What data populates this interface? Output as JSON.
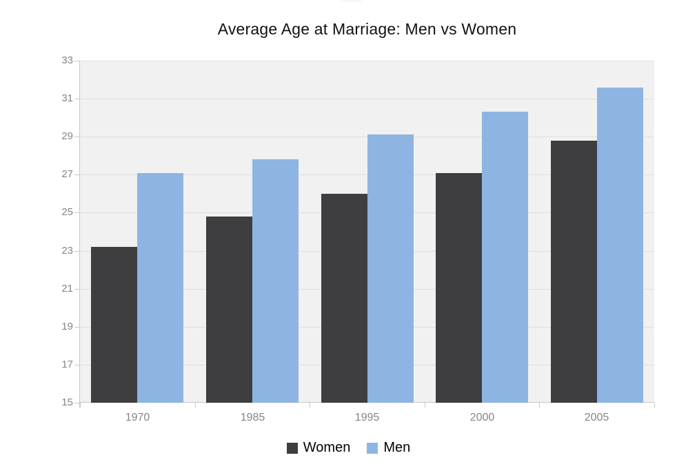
{
  "chart_data": {
    "type": "bar",
    "title": "Average Age at Marriage: Men vs Women",
    "categories": [
      "1970",
      "1985",
      "1995",
      "2000",
      "2005"
    ],
    "series": [
      {
        "name": "Women",
        "color": "#3e3e40",
        "values": [
          23.2,
          24.8,
          26.0,
          27.1,
          28.8
        ]
      },
      {
        "name": "Men",
        "color": "#8eb4e2",
        "values": [
          27.1,
          27.8,
          29.1,
          30.3,
          31.6
        ]
      }
    ],
    "xlabel": "",
    "ylabel": "",
    "ylim": [
      15,
      33
    ],
    "yticks": [
      15,
      17,
      19,
      21,
      23,
      25,
      27,
      29,
      31,
      33
    ],
    "grid": true,
    "legend_position": "bottom",
    "colors": {
      "plot_background": "#f1f1f1",
      "gridline": "#dedede",
      "axis": "#c7c7c7",
      "tick_label": "#858585",
      "title": "#111111",
      "legend_text": "#000000",
      "page_background": "#ffffff"
    }
  }
}
